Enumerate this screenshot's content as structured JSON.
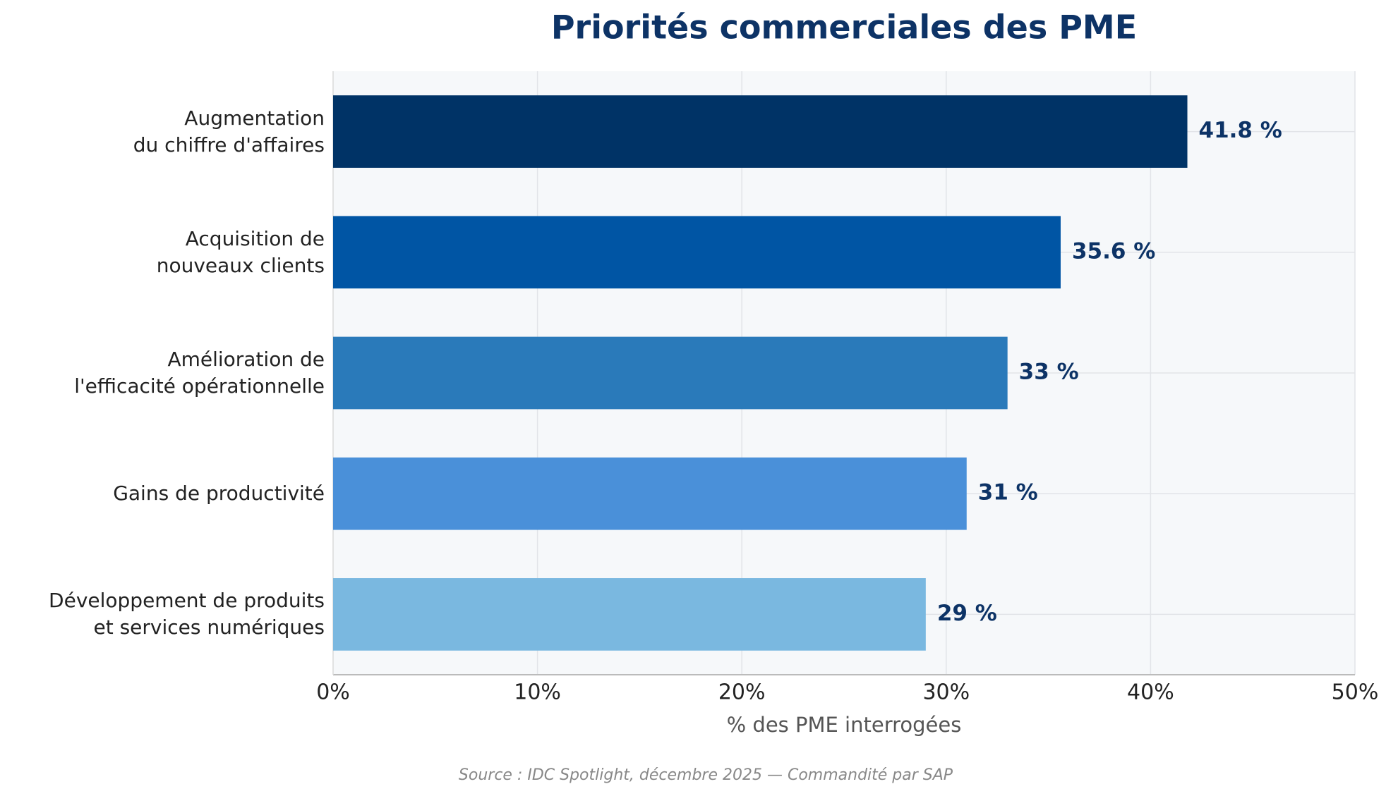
{
  "chart_data": {
    "type": "hbar",
    "title": "Priorités commerciales des PME",
    "x_label": "% des PME interrogées",
    "source": "Source : IDC Spotlight, décembre 2025 — Commandité par SAP",
    "categories": [
      "Augmentation\ndu chiffre d'affaires",
      "Acquisition de\nnouveaux clients",
      "Amélioration de\nl'efficacité opérationnelle",
      "Gains de productivité",
      "Développement de produits\net services numériques"
    ],
    "values": [
      41.8,
      35.6,
      33,
      31,
      29
    ],
    "value_labels": [
      "41.8 %",
      "35.6 %",
      "33 %",
      "31 %",
      "29 %"
    ],
    "colors": [
      "#003366",
      "#0055a4",
      "#2a7aba",
      "#4a90d9",
      "#7ab8e0"
    ],
    "xlim": [
      0,
      50
    ],
    "xticks": [
      {
        "value": 0,
        "label": "0%"
      },
      {
        "value": 10,
        "label": "10%"
      },
      {
        "value": 20,
        "label": "20%"
      },
      {
        "value": 30,
        "label": "30%"
      },
      {
        "value": 40,
        "label": "40%"
      },
      {
        "value": 50,
        "label": "50%"
      }
    ],
    "grid": true
  }
}
